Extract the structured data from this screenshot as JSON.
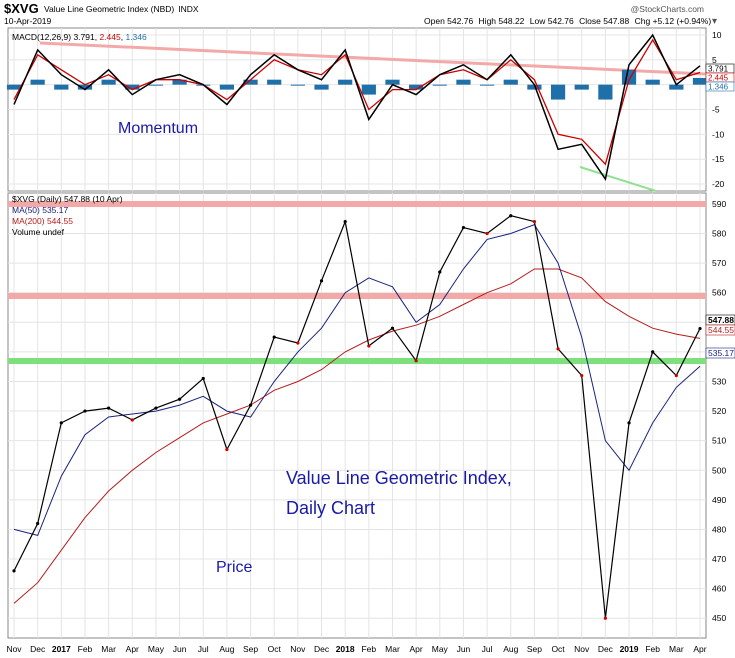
{
  "header": {
    "symbol": "$XVG",
    "name": "Value Line Geometric Index (NBD)",
    "exchange": "INDX",
    "date": "10-Apr-2019",
    "watermark": "@StockCharts.com",
    "open_label": "Open",
    "open": "542.76",
    "high_label": "High",
    "high": "548.22",
    "low_label": "Low",
    "low": "542.76",
    "close_label": "Close",
    "close": "547.88",
    "chg_label": "Chg",
    "chg": "+5.12 (+0.94%)"
  },
  "macd_panel": {
    "legend_prefix": "MACD(12,26,9)",
    "macd_value": "3.791",
    "signal_value": "2.445",
    "hist_value": "1.346",
    "annotation": "Momentum",
    "y_ticks": [
      "10",
      "5",
      "0",
      "-5",
      "-10",
      "-15",
      "-20"
    ],
    "right_tags": [
      "3.791",
      "2.445",
      "1.346"
    ]
  },
  "price_panel": {
    "legend": [
      "$XVG (Daily) 547.88 (10 Apr)",
      "MA(50) 535.17",
      "MA(200) 544.55",
      "Volume undef"
    ],
    "annotation_title_line1": "Value Line Geometric Index,",
    "annotation_title_line2": "Daily Chart",
    "annotation_price": "Price",
    "y_ticks": [
      "590",
      "580",
      "570",
      "560",
      "550",
      "540",
      "530",
      "520",
      "510",
      "500",
      "490",
      "480",
      "470",
      "460",
      "450"
    ],
    "price_tags": [
      "547.88",
      "544.55",
      "535.17"
    ]
  },
  "x_axis": [
    "Nov",
    "Dec",
    "2017",
    "Feb",
    "Mar",
    "Apr",
    "May",
    "Jun",
    "Jul",
    "Aug",
    "Sep",
    "Oct",
    "Nov",
    "Dec",
    "2018",
    "Feb",
    "Mar",
    "Apr",
    "May",
    "Jun",
    "Jul",
    "Aug",
    "Sep",
    "Oct",
    "Nov",
    "Dec",
    "2019",
    "Feb",
    "Mar",
    "Apr"
  ],
  "colors": {
    "price": "#000000",
    "price_down": "#cc0000",
    "ma50": "#1a237e",
    "ma200": "#b71c1c",
    "macd": "#000000",
    "signal": "#cc0000",
    "histogram": "#1f6fa8",
    "resistance": "#f4a9a9",
    "support": "#7de07d",
    "divergence": "#90e090",
    "annotation": "#1a1aa8"
  },
  "chart_data": [
    {
      "type": "line",
      "title": "MACD(12,26,9)",
      "ylim": [
        -21,
        11
      ],
      "series": [
        {
          "name": "MACD(12,26,9)",
          "x": [
            "2016-11",
            "2016-12",
            "2017-01",
            "2017-02",
            "2017-03",
            "2017-04",
            "2017-05",
            "2017-06",
            "2017-07",
            "2017-08",
            "2017-09",
            "2017-10",
            "2017-11",
            "2017-12",
            "2018-01",
            "2018-02",
            "2018-03",
            "2018-04",
            "2018-05",
            "2018-06",
            "2018-07",
            "2018-08",
            "2018-09",
            "2018-10",
            "2018-11",
            "2018-12",
            "2019-01",
            "2019-02",
            "2019-03",
            "2019-04"
          ],
          "values": [
            -4,
            7,
            2,
            -1,
            3,
            -2,
            1,
            2,
            0,
            -4,
            2,
            6,
            3,
            1,
            7,
            -7,
            0,
            -2,
            2,
            4,
            1,
            6,
            0,
            -13,
            -12,
            -19,
            4,
            10,
            0,
            3.791
          ]
        },
        {
          "name": "Signal",
          "values": [
            -3,
            6,
            3,
            0,
            2,
            -1,
            1,
            1,
            0,
            -3,
            1,
            5,
            3,
            2,
            6,
            -5,
            -1,
            -1,
            2,
            3,
            1,
            5,
            1,
            -10,
            -11,
            -16,
            1,
            9,
            1,
            2.445
          ]
        },
        {
          "name": "Histogram",
          "values": [
            -1,
            1,
            -1,
            -1,
            1,
            -1,
            0,
            1,
            0,
            -1,
            1,
            1,
            0,
            -1,
            1,
            -2,
            1,
            -1,
            0,
            1,
            0,
            1,
            -1,
            -3,
            -1,
            -3,
            3,
            1,
            -1,
            1.346
          ]
        }
      ]
    },
    {
      "type": "line",
      "title": "$XVG (Daily)",
      "ylim": [
        444,
        593
      ],
      "series": [
        {
          "name": "$XVG",
          "x": [
            "2016-11",
            "2016-12",
            "2017-01",
            "2017-02",
            "2017-03",
            "2017-04",
            "2017-05",
            "2017-06",
            "2017-07",
            "2017-08",
            "2017-09",
            "2017-10",
            "2017-11",
            "2017-12",
            "2018-01",
            "2018-02",
            "2018-03",
            "2018-04",
            "2018-05",
            "2018-06",
            "2018-07",
            "2018-08",
            "2018-09",
            "2018-10",
            "2018-11",
            "2018-12",
            "2019-01",
            "2019-02",
            "2019-03",
            "2019-04"
          ],
          "values": [
            466,
            482,
            516,
            520,
            521,
            517,
            521,
            524,
            531,
            507,
            522,
            545,
            543,
            564,
            584,
            542,
            548,
            537,
            567,
            582,
            580,
            586,
            584,
            541,
            532,
            450,
            516,
            540,
            532,
            547.88
          ]
        },
        {
          "name": "MA(50)",
          "values": [
            480,
            478,
            498,
            512,
            518,
            519,
            520,
            522,
            525,
            520,
            518,
            530,
            540,
            548,
            560,
            565,
            562,
            550,
            556,
            568,
            578,
            580,
            583,
            570,
            545,
            510,
            500,
            516,
            528,
            535.17
          ]
        },
        {
          "name": "MA(200)",
          "values": [
            455,
            462,
            473,
            484,
            493,
            500,
            506,
            511,
            516,
            519,
            522,
            527,
            530,
            534,
            540,
            544,
            547,
            549,
            552,
            556,
            560,
            563,
            568,
            568,
            565,
            557,
            552,
            548,
            546,
            544.55
          ]
        }
      ]
    }
  ]
}
